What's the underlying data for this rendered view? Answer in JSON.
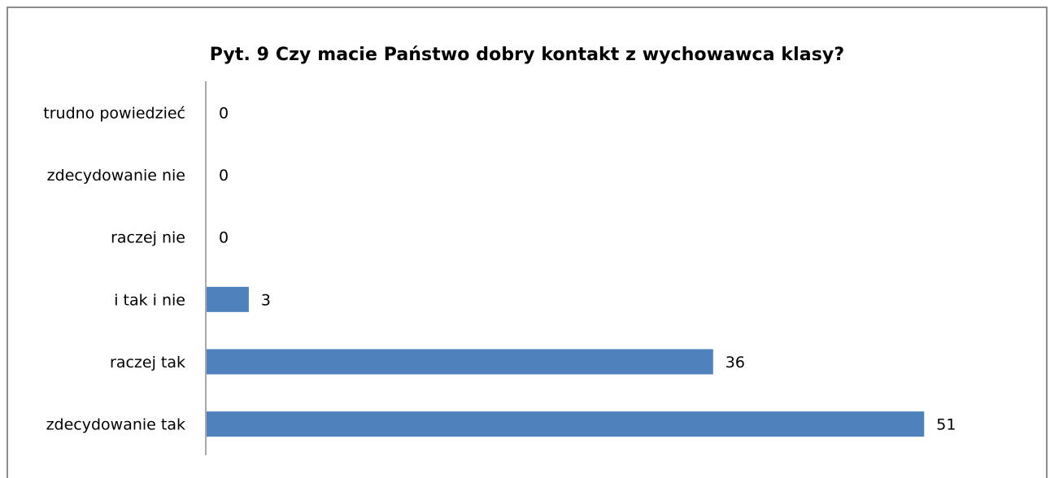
{
  "chart_data": {
    "type": "bar",
    "orientation": "horizontal",
    "title": "Pyt. 9 Czy macie Państwo dobry kontakt z wychowawca klasy?",
    "categories": [
      "trudno powiedzieć",
      "zdecydowanie nie",
      "raczej nie",
      "i tak i nie",
      "raczej tak",
      "zdecydowanie tak"
    ],
    "values": [
      0,
      0,
      0,
      3,
      36,
      51
    ],
    "bar_color": "#4f81bd",
    "data_labels": true,
    "grid": false,
    "legend": "none",
    "xlabel": "",
    "ylabel": ""
  }
}
